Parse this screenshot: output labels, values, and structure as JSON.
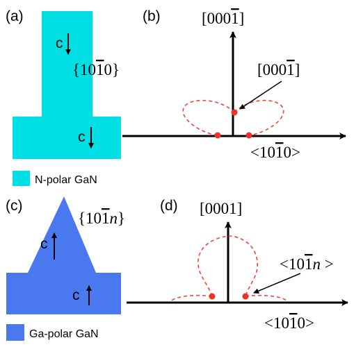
{
  "colors": {
    "n_polar": "#00e0e4",
    "ga_polar": "#4a78ef",
    "dashed": "#f0453a",
    "dot": "#ee3322",
    "axis": "#000000"
  },
  "panels": {
    "a": {
      "label": "(a)",
      "c_upper": "c",
      "c_lower": "c",
      "facet_prefix": "{10",
      "facet_bar": "1",
      "facet_suffix": "0}"
    },
    "b": {
      "label": "(b)",
      "axis_prefix": "[000",
      "axis_bar": "1",
      "axis_suffix": "]",
      "pointer_prefix": "[000",
      "pointer_bar": "1",
      "pointer_suffix": "]",
      "x_prefix": "<10",
      "x_bar": "1",
      "x_suffix": "0>"
    },
    "c": {
      "label": "(c)",
      "c_upper": "c",
      "c_lower": "c",
      "facet_prefix": "{10",
      "facet_bar": "1",
      "facet_italic": "n",
      "facet_suffix": "}"
    },
    "d": {
      "label": "(d)",
      "axis_label": "[0001]",
      "pointer_prefix": "<10",
      "pointer_bar": "1",
      "pointer_italic": "n",
      "pointer_suffix": " >",
      "x_prefix": "<10",
      "x_bar": "1",
      "x_suffix": "0>"
    }
  },
  "legend": {
    "n_polar": "N-polar GaN",
    "ga_polar": "Ga-polar GaN"
  }
}
